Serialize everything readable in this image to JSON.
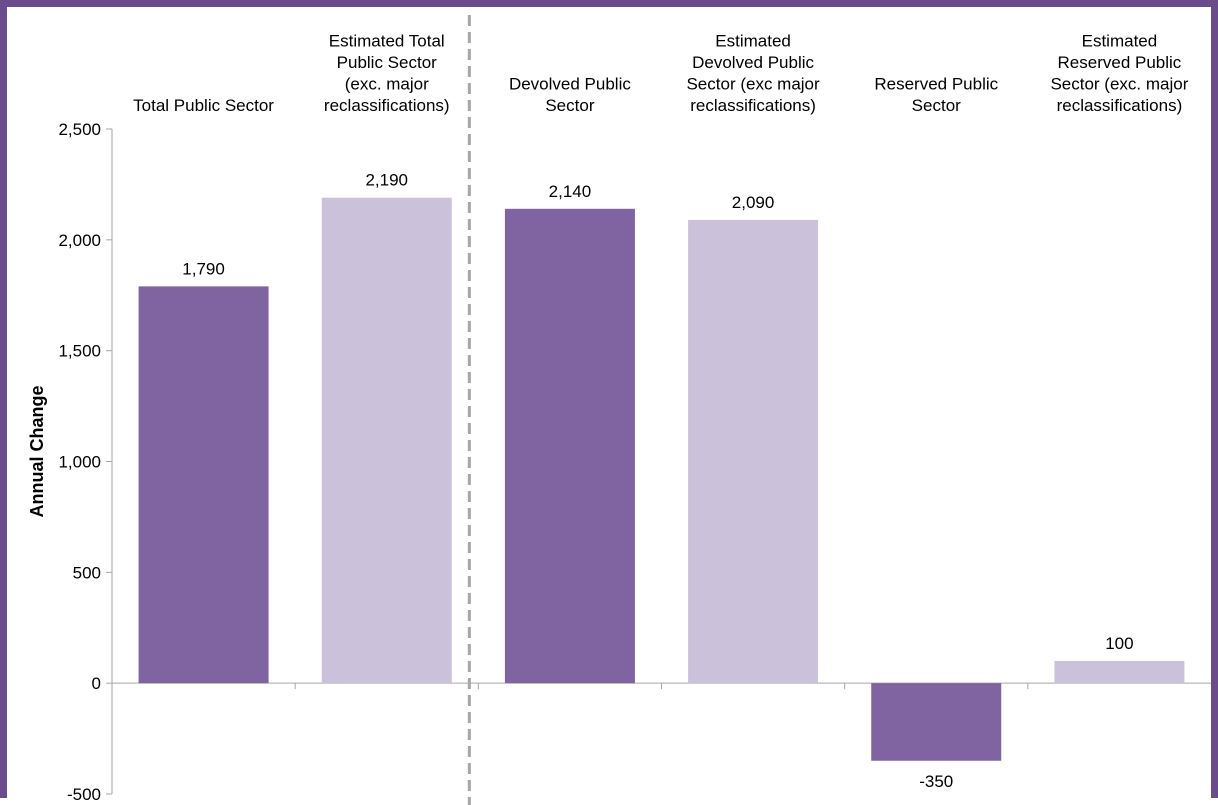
{
  "chart_data": {
    "type": "bar",
    "ylabel": "Annual Change",
    "ylim": [
      -500,
      2500
    ],
    "yticks": [
      -500,
      0,
      500,
      1000,
      1500,
      2000,
      2500
    ],
    "ytick_labels": [
      "-500",
      "0",
      "500",
      "1,000",
      "1,500",
      "2,000",
      "2,500"
    ],
    "categories": [
      [
        "Total Public Sector"
      ],
      [
        "Estimated Total",
        "Public Sector",
        "(exc. major",
        "reclassifications)"
      ],
      [
        "Devolved Public",
        "Sector"
      ],
      [
        "Estimated",
        "Devolved Public",
        "Sector (exc major",
        "reclassifications)"
      ],
      [
        "Reserved Public",
        "Sector"
      ],
      [
        "Estimated",
        "Reserved Public",
        "Sector (exc. major",
        "reclassifications)"
      ]
    ],
    "values": [
      1790,
      2190,
      2140,
      2090,
      -350,
      100
    ],
    "value_labels": [
      "1,790",
      "2,190",
      "2,140",
      "2,090",
      "-350",
      "100"
    ],
    "bar_colors": [
      "#8064a2",
      "#ccc1da",
      "#8064a2",
      "#ccc1da",
      "#8064a2",
      "#ccc1da"
    ],
    "divider_after_category": 2,
    "grid": false,
    "legend": "none"
  },
  "colors": {
    "frame": "#6a4c8c",
    "divider": "#a6a6a6",
    "axis": "#a6a6a6"
  }
}
